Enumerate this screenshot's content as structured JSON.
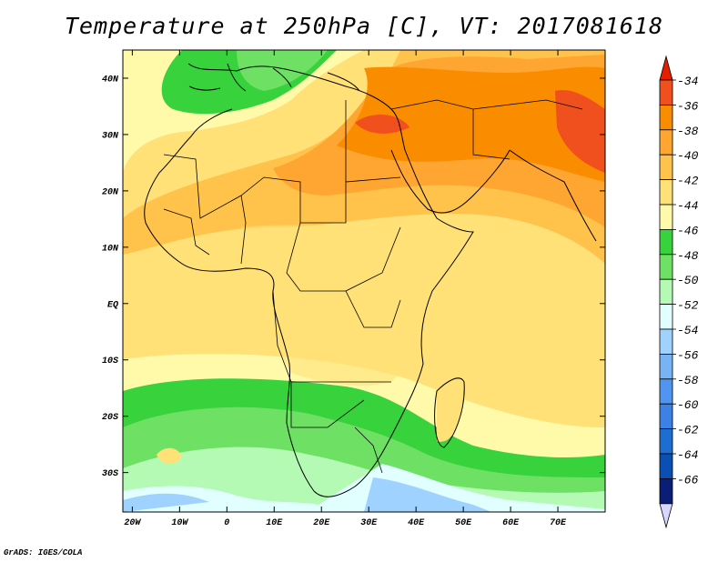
{
  "title": "Temperature at 250hPa [C], VT: 2017081618",
  "footer": "GrADS: IGES/COLA",
  "map": {
    "lat_labels": [
      "40N",
      "30N",
      "20N",
      "10N",
      "EQ",
      "10S",
      "20S",
      "30S"
    ],
    "lat_values": [
      40,
      30,
      20,
      10,
      0,
      -10,
      -20,
      -30
    ],
    "lon_labels": [
      "20W",
      "10W",
      "0",
      "10E",
      "20E",
      "30E",
      "40E",
      "50E",
      "60E",
      "70E"
    ],
    "lon_values": [
      -20,
      -10,
      0,
      10,
      20,
      30,
      40,
      50,
      60,
      70
    ],
    "lon_range": [
      -22,
      80
    ],
    "lat_range": [
      -37,
      45
    ]
  },
  "colorbar": {
    "levels": [
      -34,
      -36,
      -38,
      -40,
      -42,
      -44,
      -46,
      -48,
      -50,
      -52,
      -54,
      -56,
      -58,
      -60,
      -62,
      -64,
      -66
    ],
    "labels": [
      "-34",
      "-36",
      "-38",
      "-40",
      "-42",
      "-44",
      "-46",
      "-48",
      "-50",
      "-52",
      "-54",
      "-56",
      "-58",
      "-60",
      "-62",
      "-64",
      "-66"
    ],
    "colors": [
      "#f0501e",
      "#fa8c00",
      "#ffa532",
      "#ffc34b",
      "#ffe178",
      "#fffaaa",
      "#37d23c",
      "#6ee164",
      "#b4fab4",
      "#e1ffff",
      "#a0d2ff",
      "#78b4f5",
      "#5096f0",
      "#3c82e6",
      "#1e6ed2",
      "#0a50b4",
      "#0a1e78"
    ],
    "top_arrow_color": "#e61e00",
    "bottom_arrow_color": "#d7d7ff"
  }
}
